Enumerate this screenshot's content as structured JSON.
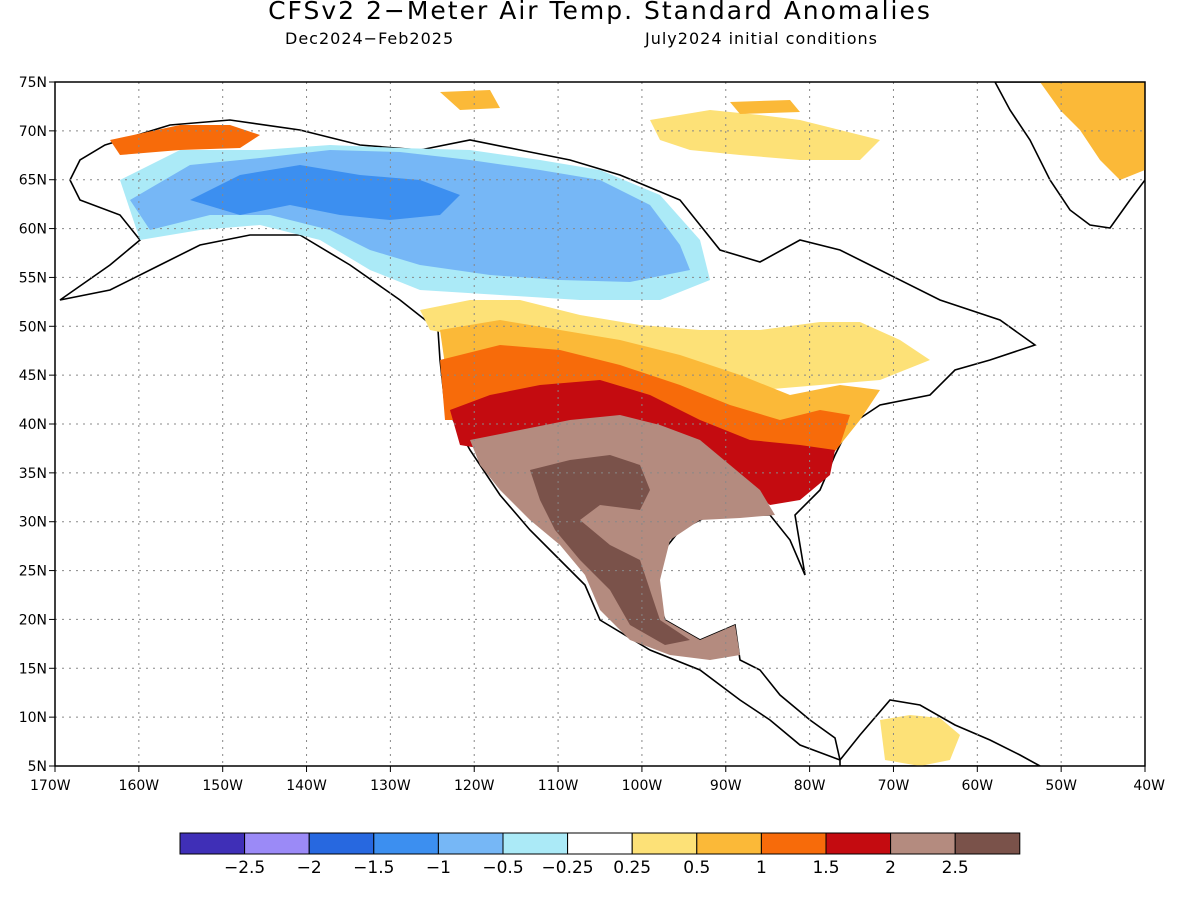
{
  "title": "CFSv2 2−Meter Air Temp. Standard Anomalies",
  "subtitle_left": "Dec2024−Feb2025",
  "subtitle_right": "July2024 initial conditions",
  "map": {
    "lon_range": [
      -170,
      -40
    ],
    "lat_range": [
      5,
      75
    ],
    "grid": true,
    "lat_labels": [
      "75N",
      "70N",
      "65N",
      "60N",
      "55N",
      "50N",
      "45N",
      "40N",
      "35N",
      "30N",
      "25N",
      "20N",
      "15N",
      "10N",
      "5N"
    ],
    "lon_labels": [
      "170W",
      "160W",
      "150W",
      "140W",
      "130W",
      "120W",
      "110W",
      "100W",
      "90W",
      "80W",
      "70W",
      "60W",
      "50W",
      "40W"
    ]
  },
  "legend": {
    "colors": [
      "#3f2fb7",
      "#9b8af7",
      "#2768e0",
      "#3c8ff0",
      "#76b7f6",
      "#abeaf7",
      "#ffffff",
      "#fde177",
      "#fbb938",
      "#f76b0a",
      "#c40b10",
      "#b48b7f",
      "#7a524a"
    ],
    "labels": [
      "−2.5",
      "−2",
      "−1.5",
      "−1",
      "−0.5",
      "−0.25",
      "0.25",
      "0.5",
      "1",
      "1.5",
      "2",
      "2.5"
    ]
  }
}
